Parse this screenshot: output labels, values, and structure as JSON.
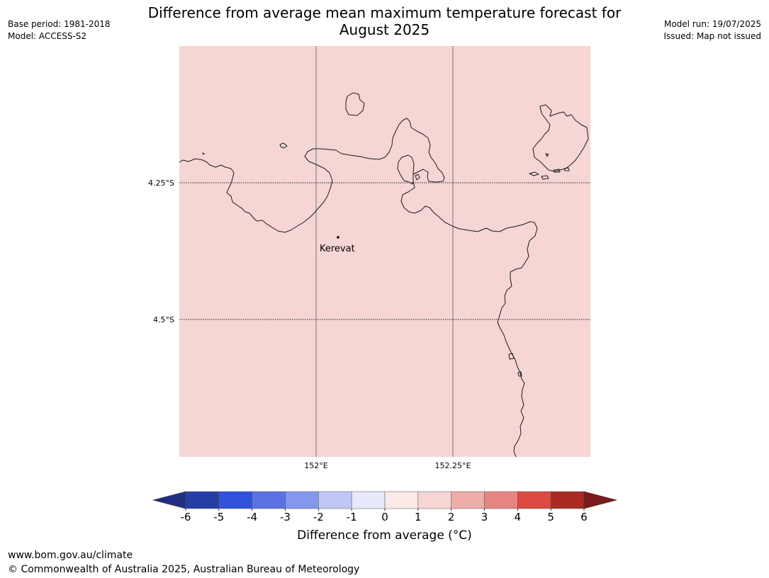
{
  "header": {
    "title_line1": "Difference from average mean maximum temperature forecast for",
    "title_line2": "August 2025",
    "base_period": "Base period: 1981-2018",
    "model": "Model: ACCESS-S2",
    "model_run": "Model run: 19/07/2025",
    "issued": "Issued: Map not issued"
  },
  "map": {
    "fill_color": "#f5d6d4",
    "latitude_labels": [
      "4.25°S",
      "4.5°S"
    ],
    "longitude_labels": [
      "152°E",
      "152.25°E"
    ],
    "place": {
      "name": "Kerevat"
    }
  },
  "colorbar": {
    "label": "Difference from average ( °C)",
    "label_display": "Difference from average (°C)",
    "ticks": [
      "-6",
      "-5",
      "-4",
      "-3",
      "-2",
      "-1",
      "0",
      "1",
      "2",
      "3",
      "4",
      "5",
      "6"
    ],
    "colors": [
      "#263da8",
      "#3152dc",
      "#5a72e4",
      "#8496ee",
      "#c0c6f6",
      "#e8eafc",
      "#fbeae8",
      "#f5d6d4",
      "#efaca8",
      "#e78482",
      "#dc4a40",
      "#ab2a24"
    ],
    "under_color": "#1f2f82",
    "over_color": "#7b1a1a"
  },
  "footer": {
    "url": "www.bom.gov.au/climate",
    "copyright": "© Commonwealth of Australia 2025, Australian Bureau of Meteorology"
  }
}
